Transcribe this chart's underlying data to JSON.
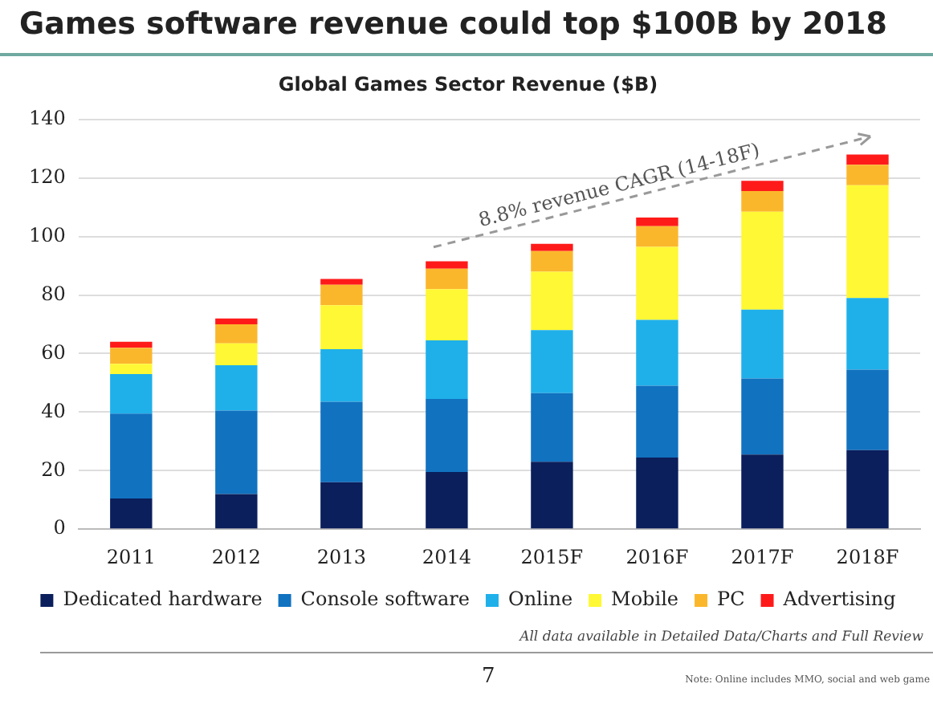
{
  "chart_data": {
    "type": "bar",
    "title": "Games software revenue could top $100B by 2018",
    "subtitle": "Global Games Sector Revenue ($B)",
    "categories": [
      "2011",
      "2012",
      "2013",
      "2014",
      "2015F",
      "2016F",
      "2017F",
      "2018F"
    ],
    "stacked": true,
    "ylim": [
      0,
      140
    ],
    "yticks": [
      0,
      20,
      40,
      60,
      80,
      100,
      120,
      140
    ],
    "grid": "y",
    "legend": "bottom",
    "series": [
      {
        "name": "Dedicated hardware",
        "color": "#0a1f5c",
        "values": [
          10.5,
          12,
          16,
          19.5,
          23,
          24.5,
          25.5,
          27
        ]
      },
      {
        "name": "Console software",
        "color": "#1172c0",
        "values": [
          29,
          28.5,
          27.5,
          25,
          23.5,
          24.5,
          26,
          27.5
        ]
      },
      {
        "name": "Online",
        "color": "#1fb0ea",
        "values": [
          13.5,
          15.5,
          18,
          20,
          21.5,
          22.5,
          23.5,
          24.5
        ]
      },
      {
        "name": "Mobile",
        "color": "#fff834",
        "values": [
          3.5,
          7.5,
          15,
          17.5,
          20,
          25,
          33.5,
          38.5
        ]
      },
      {
        "name": "PC",
        "color": "#fbb72c",
        "values": [
          5.5,
          6.5,
          7,
          7,
          7,
          7,
          7,
          7
        ]
      },
      {
        "name": "Advertising",
        "color": "#ff1a1a",
        "values": [
          2,
          2,
          2,
          2.5,
          2.5,
          3,
          3.5,
          3.5
        ]
      }
    ],
    "annotations": [
      "8.8% revenue CAGR (14-18F)",
      "All data available in Detailed Data/Charts and Full Review",
      "7",
      "Note: Online includes MMO, social and web game"
    ]
  }
}
